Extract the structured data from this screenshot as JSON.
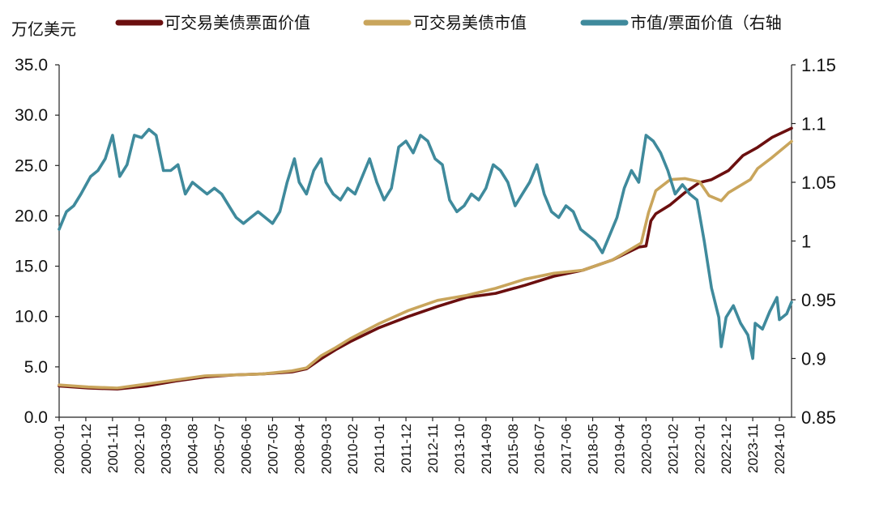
{
  "chart_data": {
    "type": "line",
    "y_left_label": "万亿美元",
    "y_left_ticks": [
      "0.0",
      "5.0",
      "10.0",
      "15.0",
      "20.0",
      "25.0",
      "30.0",
      "35.0"
    ],
    "y_left_range": [
      0,
      35
    ],
    "y_right_ticks": [
      "0.85",
      "0.9",
      "0.95",
      "1",
      "1.05",
      "1.1",
      "1.15"
    ],
    "y_right_range": [
      0.85,
      1.15
    ],
    "x_ticks": [
      "2000-01",
      "2000-12",
      "2001-11",
      "2002-10",
      "2003-09",
      "2004-08",
      "2005-07",
      "2006-06",
      "2007-05",
      "2008-04",
      "2009-03",
      "2010-02",
      "2011-01",
      "2011-12",
      "2012-11",
      "2013-10",
      "2014-09",
      "2015-08",
      "2016-07",
      "2017-06",
      "2018-05",
      "2019-04",
      "2020-03",
      "2021-02",
      "2022-01",
      "2022-12",
      "2023-11",
      "2024-10"
    ],
    "x_range": [
      "2000-01",
      "2025-03"
    ],
    "series": [
      {
        "name": "可交易美债票面价值",
        "color": "#6b0f0f",
        "axis": "left",
        "points": [
          [
            "2000-01",
            3.1
          ],
          [
            "2001-01",
            2.9
          ],
          [
            "2002-01",
            2.8
          ],
          [
            "2003-01",
            3.1
          ],
          [
            "2004-01",
            3.6
          ],
          [
            "2005-01",
            4.0
          ],
          [
            "2006-01",
            4.2
          ],
          [
            "2007-01",
            4.3
          ],
          [
            "2008-01",
            4.5
          ],
          [
            "2008-07",
            4.8
          ],
          [
            "2009-01",
            5.8
          ],
          [
            "2009-07",
            6.7
          ],
          [
            "2010-01",
            7.5
          ],
          [
            "2011-01",
            8.9
          ],
          [
            "2012-01",
            10.0
          ],
          [
            "2013-01",
            11.0
          ],
          [
            "2014-01",
            11.9
          ],
          [
            "2015-01",
            12.3
          ],
          [
            "2016-01",
            13.1
          ],
          [
            "2017-01",
            14.0
          ],
          [
            "2018-01",
            14.6
          ],
          [
            "2019-01",
            15.6
          ],
          [
            "2019-12",
            16.9
          ],
          [
            "2020-03",
            17.0
          ],
          [
            "2020-05",
            19.5
          ],
          [
            "2020-07",
            20.2
          ],
          [
            "2021-01",
            21.1
          ],
          [
            "2021-07",
            22.3
          ],
          [
            "2022-01",
            23.3
          ],
          [
            "2022-06",
            23.6
          ],
          [
            "2023-01",
            24.5
          ],
          [
            "2023-07",
            26.0
          ],
          [
            "2024-01",
            26.8
          ],
          [
            "2024-07",
            27.8
          ],
          [
            "2025-03",
            28.7
          ]
        ]
      },
      {
        "name": "可交易美债市值",
        "color": "#c9a55c",
        "axis": "left",
        "points": [
          [
            "2000-01",
            3.2
          ],
          [
            "2001-01",
            3.0
          ],
          [
            "2002-01",
            2.9
          ],
          [
            "2003-01",
            3.3
          ],
          [
            "2004-01",
            3.7
          ],
          [
            "2005-01",
            4.1
          ],
          [
            "2006-01",
            4.2
          ],
          [
            "2007-01",
            4.3
          ],
          [
            "2008-01",
            4.6
          ],
          [
            "2008-07",
            4.9
          ],
          [
            "2009-01",
            6.1
          ],
          [
            "2009-07",
            6.9
          ],
          [
            "2010-01",
            7.8
          ],
          [
            "2011-01",
            9.3
          ],
          [
            "2012-01",
            10.6
          ],
          [
            "2013-01",
            11.6
          ],
          [
            "2014-01",
            12.1
          ],
          [
            "2015-01",
            12.8
          ],
          [
            "2016-01",
            13.7
          ],
          [
            "2017-01",
            14.3
          ],
          [
            "2018-01",
            14.6
          ],
          [
            "2019-01",
            15.6
          ],
          [
            "2020-01",
            17.3
          ],
          [
            "2020-04",
            20.3
          ],
          [
            "2020-07",
            22.5
          ],
          [
            "2021-01",
            23.6
          ],
          [
            "2021-07",
            23.7
          ],
          [
            "2022-01",
            23.4
          ],
          [
            "2022-05",
            22.0
          ],
          [
            "2022-10",
            21.5
          ],
          [
            "2023-01",
            22.3
          ],
          [
            "2023-10",
            23.6
          ],
          [
            "2024-01",
            24.7
          ],
          [
            "2024-07",
            25.8
          ],
          [
            "2025-03",
            27.4
          ]
        ]
      },
      {
        "name": "市值/票面价值（右轴",
        "color": "#3f8a9c",
        "axis": "right",
        "points": [
          [
            "2000-01",
            1.01
          ],
          [
            "2000-04",
            1.025
          ],
          [
            "2000-07",
            1.03
          ],
          [
            "2000-10",
            1.04
          ],
          [
            "2001-02",
            1.055
          ],
          [
            "2001-05",
            1.06
          ],
          [
            "2001-08",
            1.07
          ],
          [
            "2001-11",
            1.09
          ],
          [
            "2002-02",
            1.055
          ],
          [
            "2002-05",
            1.065
          ],
          [
            "2002-08",
            1.09
          ],
          [
            "2002-11",
            1.088
          ],
          [
            "2003-02",
            1.095
          ],
          [
            "2003-05",
            1.09
          ],
          [
            "2003-08",
            1.06
          ],
          [
            "2003-11",
            1.06
          ],
          [
            "2004-02",
            1.065
          ],
          [
            "2004-05",
            1.04
          ],
          [
            "2004-08",
            1.05
          ],
          [
            "2004-11",
            1.045
          ],
          [
            "2005-02",
            1.04
          ],
          [
            "2005-05",
            1.045
          ],
          [
            "2005-08",
            1.04
          ],
          [
            "2005-11",
            1.03
          ],
          [
            "2006-02",
            1.02
          ],
          [
            "2006-05",
            1.015
          ],
          [
            "2006-08",
            1.02
          ],
          [
            "2006-11",
            1.025
          ],
          [
            "2007-02",
            1.02
          ],
          [
            "2007-05",
            1.015
          ],
          [
            "2007-08",
            1.025
          ],
          [
            "2007-11",
            1.05
          ],
          [
            "2008-02",
            1.07
          ],
          [
            "2008-04",
            1.05
          ],
          [
            "2008-07",
            1.04
          ],
          [
            "2008-10",
            1.06
          ],
          [
            "2009-01",
            1.07
          ],
          [
            "2009-03",
            1.05
          ],
          [
            "2009-06",
            1.04
          ],
          [
            "2009-09",
            1.035
          ],
          [
            "2009-12",
            1.045
          ],
          [
            "2010-03",
            1.04
          ],
          [
            "2010-06",
            1.055
          ],
          [
            "2010-09",
            1.07
          ],
          [
            "2010-12",
            1.05
          ],
          [
            "2011-03",
            1.035
          ],
          [
            "2011-06",
            1.045
          ],
          [
            "2011-09",
            1.08
          ],
          [
            "2011-12",
            1.085
          ],
          [
            "2012-03",
            1.075
          ],
          [
            "2012-06",
            1.09
          ],
          [
            "2012-09",
            1.085
          ],
          [
            "2012-12",
            1.07
          ],
          [
            "2013-03",
            1.065
          ],
          [
            "2013-06",
            1.035
          ],
          [
            "2013-09",
            1.025
          ],
          [
            "2013-12",
            1.03
          ],
          [
            "2014-03",
            1.04
          ],
          [
            "2014-06",
            1.035
          ],
          [
            "2014-09",
            1.045
          ],
          [
            "2014-12",
            1.065
          ],
          [
            "2015-03",
            1.06
          ],
          [
            "2015-06",
            1.05
          ],
          [
            "2015-09",
            1.03
          ],
          [
            "2015-12",
            1.04
          ],
          [
            "2016-03",
            1.05
          ],
          [
            "2016-06",
            1.065
          ],
          [
            "2016-09",
            1.04
          ],
          [
            "2016-12",
            1.025
          ],
          [
            "2017-03",
            1.02
          ],
          [
            "2017-06",
            1.03
          ],
          [
            "2017-09",
            1.025
          ],
          [
            "2017-12",
            1.01
          ],
          [
            "2018-03",
            1.005
          ],
          [
            "2018-06",
            1.0
          ],
          [
            "2018-09",
            0.99
          ],
          [
            "2018-12",
            1.005
          ],
          [
            "2019-03",
            1.02
          ],
          [
            "2019-06",
            1.045
          ],
          [
            "2019-09",
            1.06
          ],
          [
            "2019-12",
            1.05
          ],
          [
            "2020-03",
            1.09
          ],
          [
            "2020-06",
            1.085
          ],
          [
            "2020-09",
            1.075
          ],
          [
            "2020-12",
            1.06
          ],
          [
            "2021-03",
            1.04
          ],
          [
            "2021-06",
            1.048
          ],
          [
            "2021-09",
            1.04
          ],
          [
            "2021-12",
            1.035
          ],
          [
            "2022-03",
            1.0
          ],
          [
            "2022-06",
            0.96
          ],
          [
            "2022-09",
            0.935
          ],
          [
            "2022-10",
            0.91
          ],
          [
            "2022-12",
            0.935
          ],
          [
            "2023-03",
            0.945
          ],
          [
            "2023-06",
            0.93
          ],
          [
            "2023-09",
            0.92
          ],
          [
            "2023-11",
            0.9
          ],
          [
            "2023-12",
            0.93
          ],
          [
            "2024-03",
            0.925
          ],
          [
            "2024-06",
            0.94
          ],
          [
            "2024-09",
            0.952
          ],
          [
            "2024-10",
            0.933
          ],
          [
            "2025-01",
            0.938
          ],
          [
            "2025-03",
            0.948
          ]
        ]
      }
    ]
  }
}
